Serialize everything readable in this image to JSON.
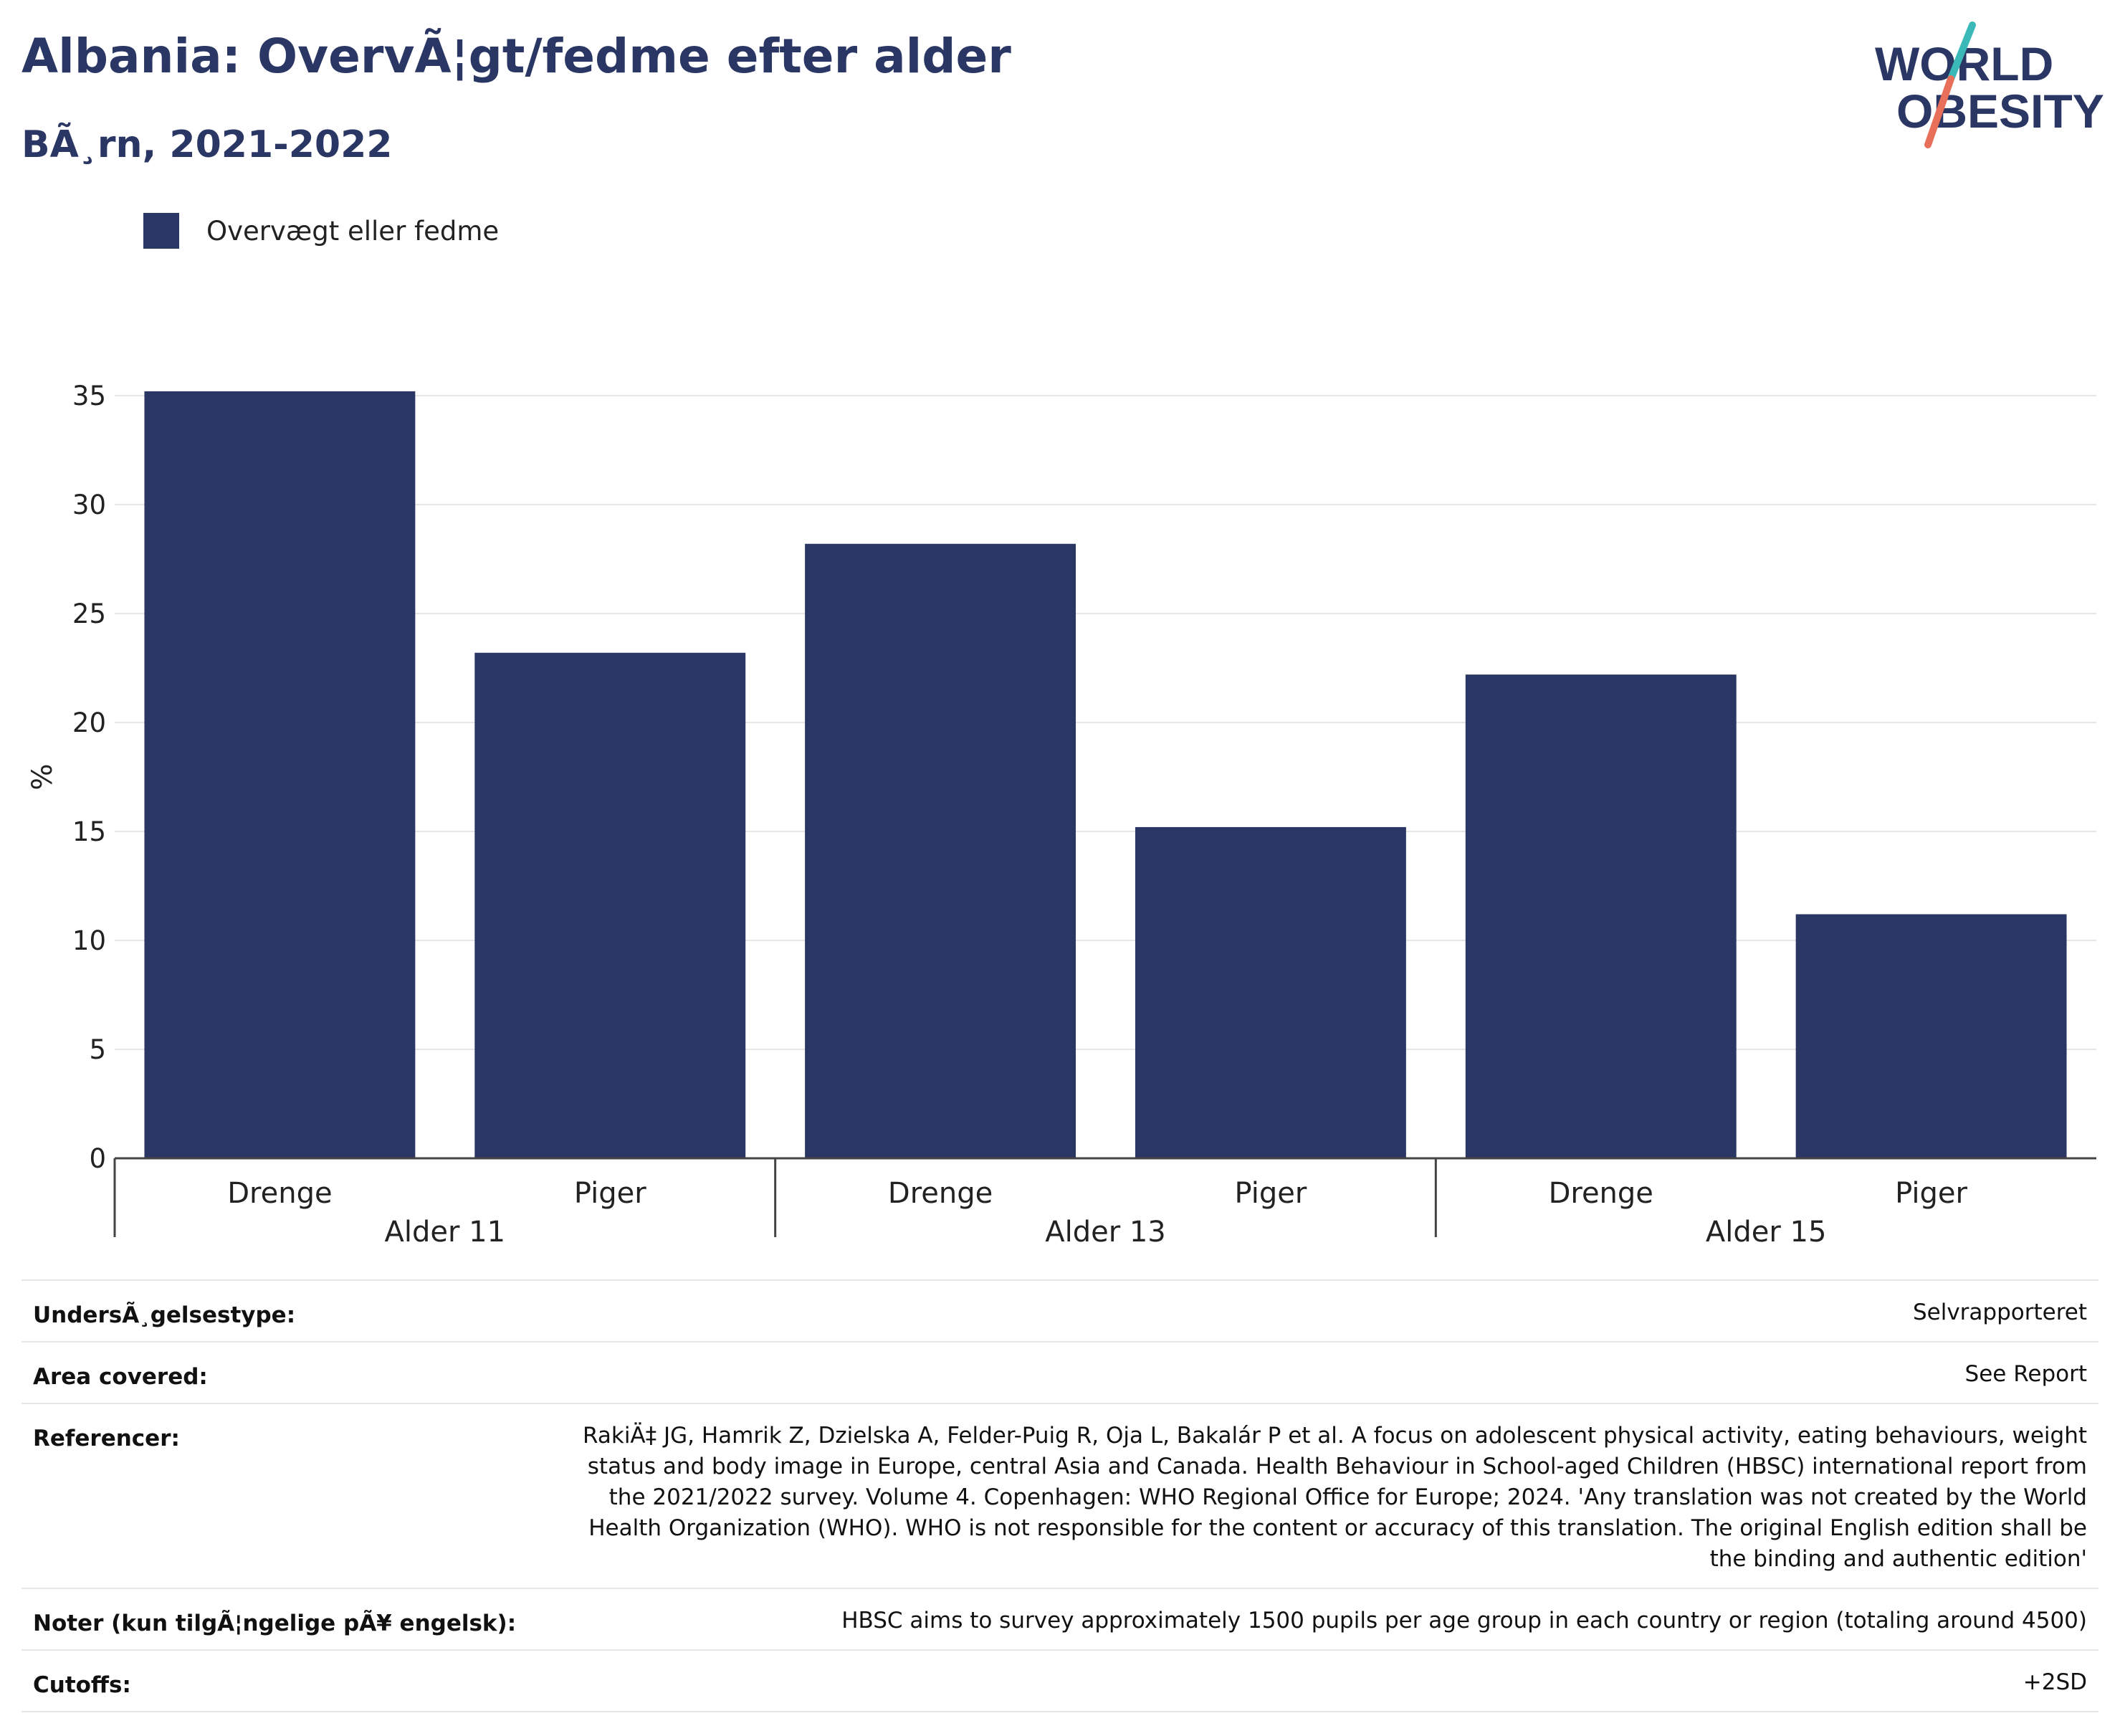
{
  "header": {
    "title": "Albania: OvervÃ¦gt/fedme efter alder",
    "subtitle": "BÃ¸rn, 2021-2022"
  },
  "logo": {
    "line1": "WORLD",
    "line2": "OBESITY",
    "accent_teal": "#3bb8b8",
    "accent_coral": "#e8705b"
  },
  "legend": {
    "label": "Overvægt eller fedme",
    "color": "#2a3663"
  },
  "chart_data": {
    "type": "bar",
    "ylabel": "%",
    "ylim": [
      0,
      35
    ],
    "yticks": [
      0,
      5,
      10,
      15,
      20,
      25,
      30,
      35
    ],
    "grid": true,
    "groups": [
      "Alder 11",
      "Alder 13",
      "Alder 15"
    ],
    "categories": [
      "Drenge",
      "Piger",
      "Drenge",
      "Piger",
      "Drenge",
      "Piger"
    ],
    "series": [
      {
        "name": "Overvægt eller fedme",
        "values": [
          35.2,
          23.2,
          28.2,
          15.2,
          22.2,
          11.2
        ],
        "color": "#2a3663"
      }
    ]
  },
  "info": [
    {
      "key": "UndersÃ¸gelsestype:",
      "value": "Selvrapporteret"
    },
    {
      "key": "Area covered:",
      "value": "See Report"
    },
    {
      "key": "Referencer:",
      "value": "RakiÄ‡ JG, Hamrik Z, Dzielska A, Felder-Puig R, Oja L, Bakalár P et al. A focus on adolescent physical activity, eating behaviours, weight status and body image in Europe, central Asia and Canada. Health Behaviour in School-aged Children (HBSC) international report from the 2021/2022 survey. Volume 4. Copenhagen: WHO Regional Office for Europe; 2024. 'Any translation was not created by the World Health Organization (WHO). WHO is not responsible for the content or accuracy of this translation. The original English edition shall be the binding and authentic edition'"
    },
    {
      "key": "Noter (kun tilgÃ¦ngelige pÃ¥ engelsk):",
      "value": "HBSC aims to survey approximately 1500 pupils per age group in each country or region (totaling around 4500)"
    },
    {
      "key": "Cutoffs:",
      "value": "+2SD"
    }
  ]
}
